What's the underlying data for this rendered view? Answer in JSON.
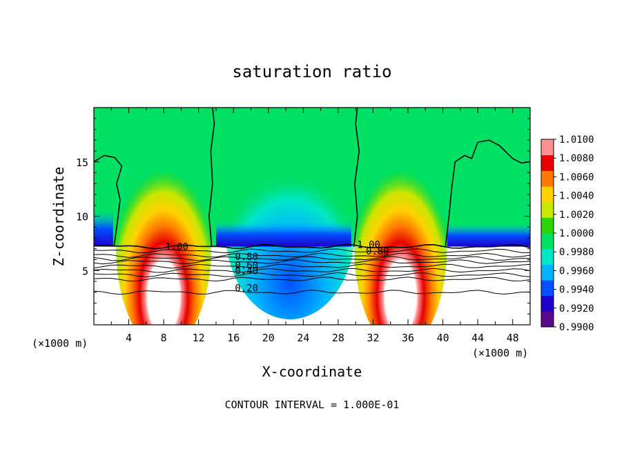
{
  "chart_data": {
    "type": "heatmap",
    "title": "saturation ratio",
    "xlabel": "X-coordinate",
    "ylabel": "Z-coordinate",
    "x_unit": "(×1000 m)",
    "x_unit_right": "(×1000 m)",
    "footer": "CONTOUR INTERVAL = 1.000E-01",
    "xlim": [
      0,
      50
    ],
    "ylim": [
      0,
      20
    ],
    "x_ticks": [
      4,
      8,
      12,
      16,
      20,
      24,
      28,
      32,
      36,
      40,
      44,
      48
    ],
    "y_ticks": [
      5,
      10,
      15
    ],
    "colorbar": {
      "levels": [
        "0.9900",
        "0.9920",
        "0.9940",
        "0.9960",
        "0.9980",
        "1.0000",
        "1.0020",
        "1.0040",
        "1.0060",
        "1.0080",
        "1.0100"
      ],
      "colors": [
        "#5a0a8a",
        "#1f00c8",
        "#0050ff",
        "#00b4ff",
        "#00e6c8",
        "#00e064",
        "#2cd400",
        "#c8e600",
        "#ffd200",
        "#ff7800",
        "#e60000",
        "#ff9090"
      ]
    },
    "colors": {
      "below_range": "#ffffff",
      "contour": "#000000",
      "saturated_max": "#ffffff"
    },
    "contour_labels": [
      {
        "text": "1.00",
        "x": 9.5,
        "y": 7.2
      },
      {
        "text": "1.00",
        "x": 31.5,
        "y": 7.4
      },
      {
        "text": "0.80",
        "x": 17.5,
        "y": 6.3
      },
      {
        "text": "0.80",
        "x": 32.5,
        "y": 6.8
      },
      {
        "text": "0.60",
        "x": 17.5,
        "y": 5.5
      },
      {
        "text": "0.40",
        "x": 17.5,
        "y": 5.0
      },
      {
        "text": "0.20",
        "x": 17.5,
        "y": 3.4
      }
    ]
  }
}
